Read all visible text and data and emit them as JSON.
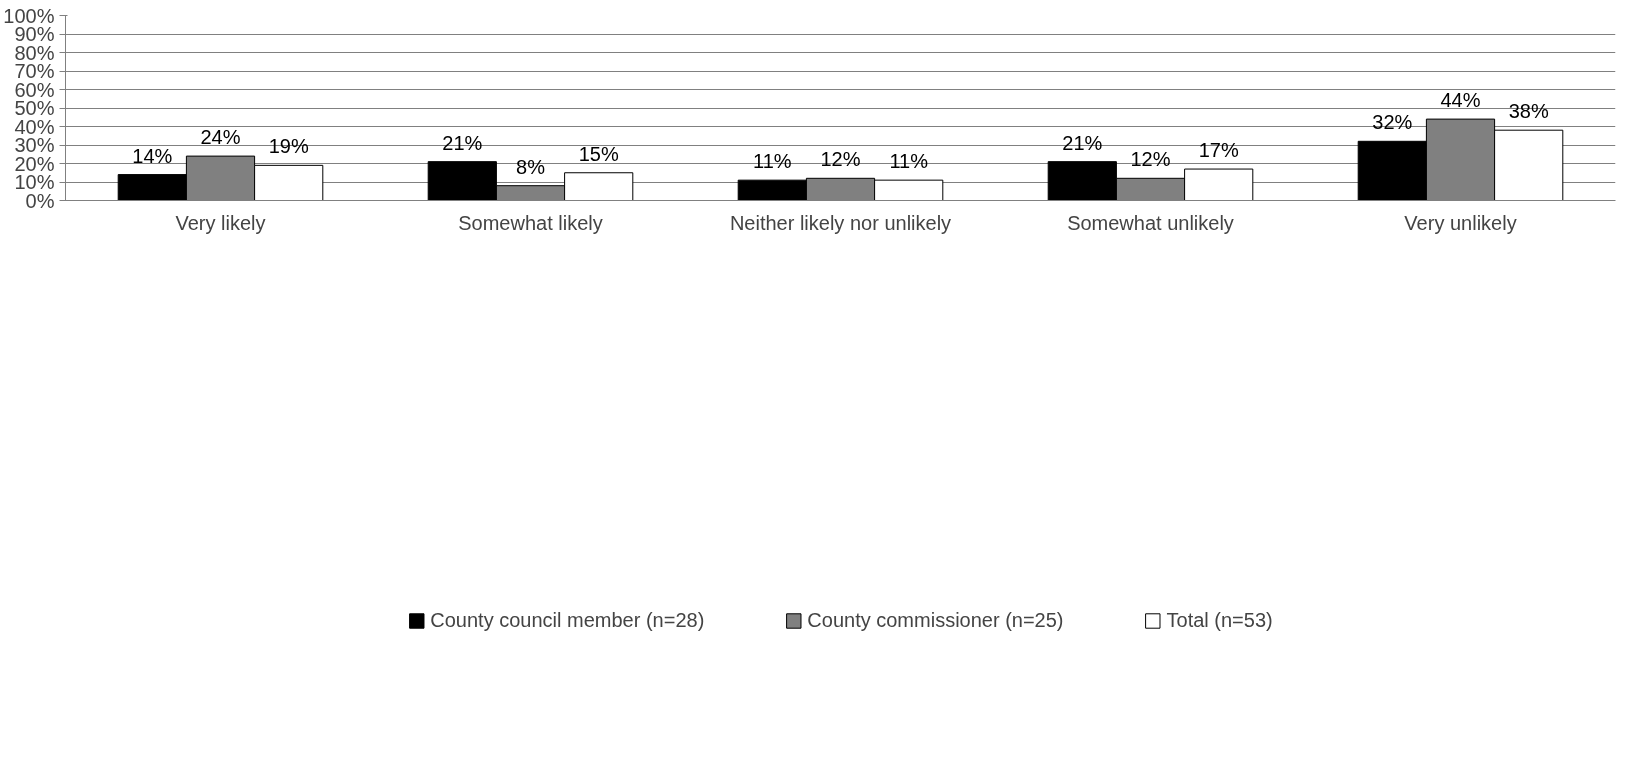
{
  "chart_data": {
    "type": "bar",
    "categories": [
      "Very likely",
      "Somewhat likely",
      "Neither likely nor unlikely",
      "Somewhat unlikely",
      "Very unlikely"
    ],
    "series": [
      {
        "name": "County council member (n=28)",
        "color": "#000000",
        "values": [
          14,
          21,
          11,
          21,
          32
        ],
        "value_labels": [
          "14%",
          "21%",
          "11%",
          "21%",
          "32%"
        ]
      },
      {
        "name": "County commissioner (n=25)",
        "color": "#808080",
        "values": [
          24,
          8,
          12,
          12,
          44
        ],
        "value_labels": [
          "24%",
          "8%",
          "12%",
          "12%",
          "44%"
        ]
      },
      {
        "name": "Total (n=53)",
        "color": "#ffffff",
        "values": [
          19,
          15,
          11,
          17,
          38
        ],
        "value_labels": [
          "19%",
          "15%",
          "11%",
          "17%",
          "38%"
        ]
      }
    ],
    "ylim": [
      0,
      100
    ],
    "yticks": [
      {
        "value": 0,
        "label": "0%"
      },
      {
        "value": 10,
        "label": "10%"
      },
      {
        "value": 20,
        "label": "20%"
      },
      {
        "value": 30,
        "label": "30%"
      },
      {
        "value": 40,
        "label": "40%"
      },
      {
        "value": 50,
        "label": "50%"
      },
      {
        "value": 60,
        "label": "60%"
      },
      {
        "value": 70,
        "label": "70%"
      },
      {
        "value": 80,
        "label": "80%"
      },
      {
        "value": 90,
        "label": "90%"
      },
      {
        "value": 100,
        "label": "100%"
      }
    ],
    "grid": "y",
    "legend": "bottom"
  }
}
